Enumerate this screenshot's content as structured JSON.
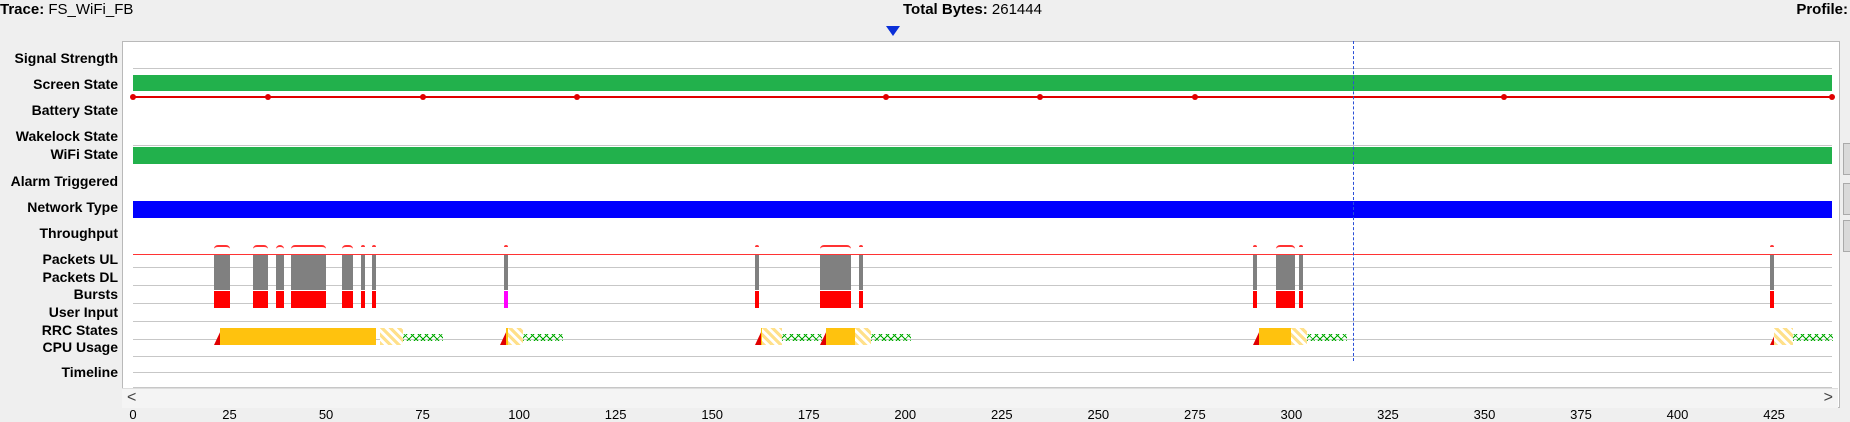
{
  "header": {
    "trace_label": "Trace:",
    "trace_name": "FS_WiFi_FB",
    "total_label": "Total Bytes:",
    "total_value": "261444",
    "profile_label": "Profile:"
  },
  "rows": [
    "Signal Strength",
    "Screen State",
    "Battery State",
    "Wakelock State",
    "WiFi State",
    "Alarm Triggered",
    "Network Type",
    "Throughput",
    "Packets UL",
    "Packets DL",
    "Bursts",
    "User Input",
    "RRC States",
    "CPU Usage",
    "Timeline"
  ],
  "timeline": {
    "ticks": [
      "0",
      "25",
      "50",
      "75",
      "100",
      "125",
      "150",
      "175",
      "200",
      "225",
      "250",
      "275",
      "300",
      "325",
      "350",
      "375",
      "400",
      "425"
    ],
    "max_seconds": 440,
    "cursor_seconds": 316
  },
  "colors": {
    "screen_state": "#22b14c",
    "wifi_state": "#22b14c",
    "network_type": "#0000ff",
    "battery_line": "#e00000",
    "throughput": "#ff3333",
    "packets": "#808080",
    "bursts": "#ff0000",
    "burst_alt": "#ff00ff",
    "rrc_dch": "#ffc20e",
    "rrc_fach": "#00aa00"
  },
  "battery_points": [
    0,
    35,
    75,
    115,
    195,
    235,
    275,
    355,
    440
  ],
  "activity_seconds": [
    [
      21,
      25
    ],
    [
      31,
      35
    ],
    [
      37,
      39
    ],
    [
      41,
      50
    ],
    [
      54,
      57
    ],
    [
      59,
      60
    ],
    [
      62,
      63
    ],
    [
      96,
      97
    ],
    [
      161,
      162
    ],
    [
      178,
      186
    ],
    [
      188,
      189
    ],
    [
      290,
      291
    ],
    [
      296,
      301
    ],
    [
      302,
      303
    ],
    [
      424,
      425
    ]
  ],
  "rrc_segments": [
    [
      21,
      63,
      64,
      70
    ],
    [
      95,
      97,
      97,
      101
    ],
    [
      161,
      163,
      163,
      168
    ],
    [
      178,
      187,
      187,
      191
    ],
    [
      290,
      300,
      300,
      304
    ],
    [
      424,
      425,
      425,
      430
    ]
  ],
  "scroll": {
    "left": "<",
    "right": ">"
  }
}
